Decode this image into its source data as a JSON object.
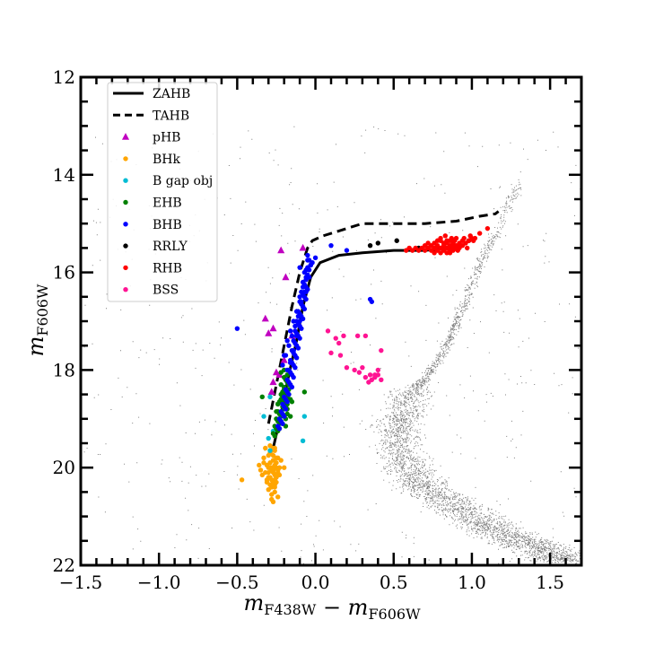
{
  "chart_data": {
    "type": "scatter",
    "xlabel": "m_{F438W} − m_{F606W}",
    "ylabel": "m_{F606W}",
    "xlim": [
      -1.5,
      1.7
    ],
    "ylim": [
      22,
      12
    ],
    "y_inverted": true,
    "x_ticks": [
      -1.5,
      -1.0,
      -0.5,
      0.0,
      0.5,
      1.0,
      1.5
    ],
    "x_tick_labels": [
      "−1.5",
      "−1.0",
      "−0.5",
      "0.0",
      "0.5",
      "1.0",
      "1.5"
    ],
    "y_ticks": [
      12,
      14,
      16,
      18,
      20,
      22
    ],
    "y_tick_labels": [
      "12",
      "14",
      "16",
      "18",
      "20",
      "22"
    ],
    "grid": false,
    "legend_position": "top-left",
    "lines": [
      {
        "name": "ZAHB",
        "style": "solid",
        "color": "#000000",
        "x": [
          -0.27,
          -0.22,
          -0.17,
          -0.12,
          -0.08,
          -0.03,
          0.03,
          0.15,
          0.3,
          0.5,
          0.7,
          0.85,
          0.95
        ],
        "y": [
          19.6,
          18.9,
          18.1,
          17.4,
          16.7,
          16.1,
          15.8,
          15.65,
          15.6,
          15.55,
          15.55,
          15.5,
          15.45
        ]
      },
      {
        "name": "TAHB",
        "style": "dashed",
        "color": "#000000",
        "x": [
          -0.3,
          -0.25,
          -0.2,
          -0.15,
          -0.1,
          -0.05,
          -0.02,
          0.05,
          0.15,
          0.3,
          0.5,
          0.7,
          0.9,
          1.05,
          1.15,
          1.17
        ],
        "y": [
          19.1,
          18.3,
          17.5,
          16.7,
          16.0,
          15.5,
          15.35,
          15.25,
          15.15,
          15.0,
          15.0,
          15.0,
          14.95,
          14.85,
          14.8,
          14.75
        ]
      }
    ],
    "series": [
      {
        "name": "pHB",
        "marker": "triangle",
        "color": "#c000c0",
        "x": [
          -0.22,
          -0.19,
          -0.08,
          -0.27,
          -0.32,
          -0.3,
          -0.2,
          -0.25,
          -0.27,
          -0.28,
          -0.23,
          -0.15
        ],
        "y": [
          15.55,
          16.1,
          15.5,
          17.15,
          16.95,
          17.25,
          17.8,
          18.05,
          18.25,
          18.45,
          18.1,
          17.3
        ]
      },
      {
        "name": "BHk",
        "marker": "circle",
        "color": "#ffa500",
        "x": [
          -0.36,
          -0.35,
          -0.33,
          -0.32,
          -0.3,
          -0.29,
          -0.28,
          -0.27,
          -0.26,
          -0.25,
          -0.24,
          -0.23,
          -0.22,
          -0.3,
          -0.28,
          -0.27,
          -0.26,
          -0.25,
          -0.24,
          -0.29,
          -0.27,
          -0.26,
          -0.25,
          -0.31,
          -0.32,
          -0.34,
          -0.3,
          -0.28,
          -0.26,
          -0.33,
          -0.28,
          -0.27,
          -0.25,
          -0.27,
          -0.26,
          -0.29,
          -0.31,
          -0.24,
          -0.27,
          -0.29,
          -0.26,
          -0.25,
          -0.28,
          -0.23,
          -0.3,
          -0.29,
          -0.27,
          -0.26,
          -0.28,
          -0.27,
          -0.2,
          -0.3,
          -0.31,
          -0.29,
          -0.28,
          -0.24,
          -0.47,
          -0.26
        ],
        "y": [
          19.95,
          20.05,
          19.8,
          20.1,
          20.0,
          19.9,
          20.0,
          20.1,
          19.95,
          20.0,
          20.05,
          20.15,
          19.85,
          20.2,
          20.25,
          20.3,
          20.35,
          20.2,
          20.1,
          19.7,
          19.75,
          19.65,
          19.8,
          20.3,
          19.6,
          20.15,
          20.45,
          20.4,
          20.5,
          19.9,
          20.55,
          20.0,
          19.9,
          19.85,
          20.25,
          20.35,
          19.95,
          19.8,
          20.05,
          20.0,
          20.15,
          20.3,
          19.65,
          20.0,
          20.1,
          19.55,
          19.6,
          20.4,
          20.65,
          20.7,
          20.0,
          19.75,
          20.25,
          20.2,
          20.05,
          20.6,
          20.25,
          19.6
        ]
      },
      {
        "name": "B gap obj",
        "marker": "circle",
        "color": "#00bcd4",
        "x": [
          -0.33,
          -0.3,
          -0.29,
          -0.27,
          -0.07,
          -0.08,
          -0.29
        ],
        "y": [
          18.95,
          19.4,
          19.65,
          19.25,
          18.95,
          19.45,
          18.55
        ]
      },
      {
        "name": "EHB",
        "marker": "circle",
        "color": "#008000",
        "x": [
          -0.2,
          -0.19,
          -0.18,
          -0.17,
          -0.2,
          -0.21,
          -0.22,
          -0.19,
          -0.18,
          -0.17,
          -0.16,
          -0.22,
          -0.21,
          -0.2,
          -0.19,
          -0.18,
          -0.24,
          -0.23,
          -0.22,
          -0.25,
          -0.24,
          -0.23,
          -0.26,
          -0.25,
          -0.24,
          -0.27,
          -0.26,
          -0.22,
          -0.2,
          -0.18,
          -0.2,
          -0.19,
          -0.18,
          -0.21,
          -0.2,
          -0.17,
          -0.15,
          -0.16,
          -0.22,
          -0.21,
          -0.23,
          -0.24,
          -0.25,
          -0.19,
          -0.2,
          -0.21,
          -0.34,
          -0.07,
          -0.22,
          -0.18,
          -0.2,
          -0.23
        ],
        "y": [
          18.15,
          18.2,
          18.25,
          18.3,
          18.4,
          18.45,
          18.5,
          18.45,
          18.55,
          18.5,
          18.6,
          18.6,
          18.65,
          18.7,
          18.75,
          18.8,
          18.85,
          18.9,
          18.95,
          19.0,
          19.05,
          19.1,
          19.15,
          19.2,
          19.25,
          19.3,
          19.35,
          18.3,
          18.35,
          18.7,
          18.95,
          19.0,
          18.9,
          18.75,
          18.8,
          18.4,
          18.65,
          18.95,
          19.05,
          19.1,
          18.65,
          18.7,
          18.85,
          19.15,
          18.5,
          18.55,
          18.55,
          18.45,
          18.05,
          18.1,
          18.0,
          19.2
        ]
      },
      {
        "name": "BHB",
        "marker": "circle",
        "color": "#0000ff",
        "x": [
          -0.05,
          -0.04,
          -0.03,
          -0.05,
          -0.06,
          -0.07,
          -0.05,
          -0.04,
          -0.06,
          -0.08,
          -0.07,
          -0.06,
          -0.05,
          -0.09,
          -0.08,
          -0.07,
          -0.06,
          -0.1,
          -0.09,
          -0.08,
          -0.07,
          -0.11,
          -0.1,
          -0.09,
          -0.08,
          -0.12,
          -0.11,
          -0.1,
          -0.09,
          -0.13,
          -0.12,
          -0.11,
          -0.1,
          -0.14,
          -0.13,
          -0.12,
          -0.11,
          -0.15,
          -0.14,
          -0.13,
          -0.12,
          -0.16,
          -0.15,
          -0.14,
          -0.13,
          -0.17,
          -0.16,
          -0.15,
          -0.14,
          -0.18,
          -0.17,
          -0.16,
          -0.15,
          -0.19,
          -0.18,
          -0.17,
          -0.2,
          -0.19,
          -0.18,
          -0.21,
          -0.2,
          -0.19,
          -0.22,
          -0.21,
          -0.2,
          -0.23,
          -0.22,
          -0.21,
          -0.24,
          -0.23,
          -0.1,
          -0.08,
          -0.06,
          -0.12,
          -0.14,
          -0.16,
          -0.18,
          -0.2,
          -0.04,
          -0.02,
          -0.07,
          -0.09,
          -0.11,
          -0.13,
          -0.15,
          -0.17,
          -0.19,
          -0.21,
          -0.12,
          -0.1,
          -0.08,
          -0.06,
          -0.14,
          -0.16,
          -0.18,
          -0.1,
          -0.5,
          0.1,
          0.2,
          0.35,
          0.36,
          0.0,
          -0.03,
          -0.05
        ],
        "y": [
          15.65,
          15.75,
          15.85,
          15.9,
          15.95,
          16.0,
          16.05,
          16.1,
          16.15,
          16.2,
          16.25,
          16.3,
          16.35,
          16.4,
          16.45,
          16.5,
          16.55,
          16.6,
          16.65,
          16.7,
          16.75,
          16.8,
          16.85,
          16.9,
          16.95,
          17.0,
          17.05,
          17.1,
          17.15,
          17.2,
          17.25,
          17.3,
          17.35,
          17.4,
          17.45,
          17.5,
          17.55,
          17.6,
          17.65,
          17.7,
          17.75,
          17.8,
          17.85,
          17.9,
          17.95,
          18.0,
          18.05,
          18.1,
          18.15,
          18.2,
          18.25,
          18.3,
          18.35,
          18.4,
          18.45,
          18.5,
          18.55,
          18.6,
          18.65,
          18.7,
          18.75,
          18.8,
          18.85,
          18.9,
          18.95,
          19.0,
          19.05,
          19.1,
          19.15,
          19.2,
          16.5,
          16.3,
          16.1,
          16.8,
          17.0,
          17.2,
          17.4,
          17.7,
          15.95,
          15.8,
          16.4,
          16.6,
          16.9,
          17.1,
          17.3,
          17.5,
          17.7,
          17.9,
          17.3,
          17.0,
          16.7,
          16.4,
          17.6,
          17.85,
          18.0,
          15.9,
          17.15,
          15.45,
          15.55,
          16.55,
          16.6,
          15.7,
          15.85,
          15.75
        ]
      },
      {
        "name": "RRLY",
        "marker": "circle",
        "color": "#000000",
        "x": [
          0.35,
          0.4,
          0.52,
          0.66,
          0.92,
          0.98
        ],
        "y": [
          15.45,
          15.4,
          15.35,
          15.5,
          15.45,
          15.35
        ]
      },
      {
        "name": "RHB",
        "marker": "circle",
        "color": "#ff0000",
        "x": [
          0.58,
          0.6,
          0.62,
          0.64,
          0.66,
          0.68,
          0.7,
          0.72,
          0.74,
          0.76,
          0.78,
          0.8,
          0.82,
          0.84,
          0.86,
          0.88,
          0.9,
          0.92,
          0.94,
          0.96,
          0.98,
          1.0,
          1.02,
          1.05,
          0.7,
          0.72,
          0.74,
          0.76,
          0.78,
          0.8,
          0.82,
          0.84,
          0.86,
          0.88,
          0.9,
          0.92,
          0.94,
          0.76,
          0.78,
          0.8,
          0.82,
          0.84,
          0.86,
          0.88,
          0.9,
          0.8,
          0.82,
          0.84,
          0.86,
          0.88,
          0.83,
          0.85,
          0.87,
          0.89,
          0.91,
          0.93,
          0.95,
          0.97,
          0.99,
          1.01,
          1.1
        ],
        "y": [
          15.55,
          15.5,
          15.55,
          15.5,
          15.55,
          15.5,
          15.55,
          15.5,
          15.45,
          15.5,
          15.45,
          15.5,
          15.45,
          15.4,
          15.45,
          15.4,
          15.45,
          15.4,
          15.35,
          15.4,
          15.35,
          15.3,
          15.3,
          15.2,
          15.45,
          15.4,
          15.55,
          15.4,
          15.55,
          15.35,
          15.55,
          15.5,
          15.35,
          15.55,
          15.3,
          15.5,
          15.45,
          15.6,
          15.35,
          15.6,
          15.4,
          15.6,
          15.55,
          15.5,
          15.5,
          15.3,
          15.5,
          15.35,
          15.6,
          15.45,
          15.25,
          15.5,
          15.3,
          15.35,
          15.55,
          15.45,
          15.3,
          15.5,
          15.25,
          15.35,
          15.1
        ]
      },
      {
        "name": "BSS",
        "marker": "circle",
        "color": "#ff1493",
        "x": [
          0.08,
          0.13,
          0.18,
          0.1,
          0.16,
          0.27,
          0.32,
          0.3,
          0.42,
          0.2,
          0.28,
          0.35,
          0.4,
          0.38,
          0.42,
          0.34,
          0.36,
          0.38,
          0.4,
          0.32,
          0.25,
          0.15
        ],
        "y": [
          17.2,
          17.35,
          17.3,
          17.65,
          17.7,
          17.3,
          17.3,
          17.95,
          17.6,
          17.95,
          18.05,
          18.1,
          18.1,
          18.15,
          18.2,
          18.25,
          18.2,
          18.1,
          18.0,
          18.15,
          18.0,
          17.45
        ]
      }
    ],
    "background_field": {
      "name": "cluster stars",
      "color": "#7f7f7f",
      "description_of_sequence_ridge_x": [
        1.3,
        1.15,
        1.05,
        0.97,
        0.9,
        0.85,
        0.78,
        0.7,
        0.62,
        0.55,
        0.52,
        0.55,
        0.63,
        0.75,
        0.9,
        1.05,
        1.2,
        1.35,
        1.5,
        1.6
      ],
      "description_of_sequence_ridge_y": [
        14.2,
        15.2,
        15.8,
        16.5,
        17.0,
        17.4,
        17.8,
        18.2,
        18.4,
        18.9,
        19.3,
        19.8,
        20.2,
        20.5,
        20.8,
        21.1,
        21.35,
        21.55,
        21.75,
        21.9
      ]
    }
  }
}
